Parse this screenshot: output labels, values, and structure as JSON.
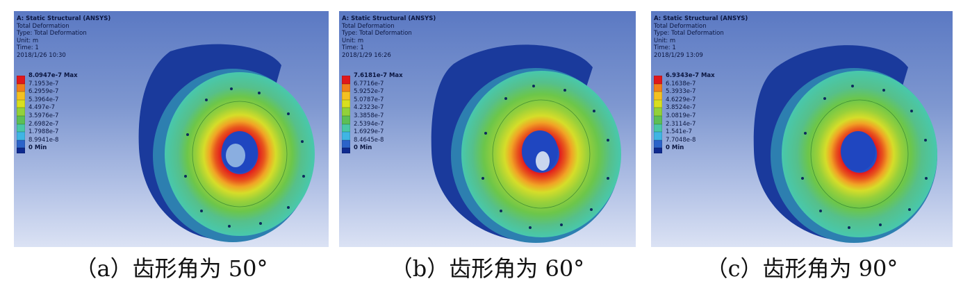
{
  "panels": [
    {
      "id": "a",
      "header": {
        "title": "A: Static Structural (ANSYS)",
        "result": "Total Deformation",
        "type": "Type: Total Deformation",
        "unit": "Unit: m",
        "time": "Time: 1",
        "date": "2018/1/26 10:30"
      },
      "legend": [
        "8.0947e-7 Max",
        "7.1953e-7",
        "6.2959e-7",
        "5.3964e-7",
        "4.497e-7",
        "3.5976e-7",
        "2.6982e-7",
        "1.7988e-7",
        "8.9941e-8",
        "0 Min"
      ],
      "caption": "（a）齿形角为 50°"
    },
    {
      "id": "b",
      "header": {
        "title": "A: Static Structural (ANSYS)",
        "result": "Total Deformation",
        "type": "Type: Total Deformation",
        "unit": "Unit: m",
        "time": "Time: 1",
        "date": "2018/1/29 16:26"
      },
      "legend": [
        "7.6181e-7 Max",
        "6.7716e-7",
        "5.9252e-7",
        "5.0787e-7",
        "4.2323e-7",
        "3.3858e-7",
        "2.5394e-7",
        "1.6929e-7",
        "8.4645e-8",
        "0 Min"
      ],
      "caption": "（b）齿形角为 60°"
    },
    {
      "id": "c",
      "header": {
        "title": "A: Static Structural (ANSYS)",
        "result": "Total Deformation",
        "type": "Type: Total Deformation",
        "unit": "Unit: m",
        "time": "Time: 1",
        "date": "2018/1/29 13:09"
      },
      "legend": [
        "6.9343e-7 Max",
        "6.1638e-7",
        "5.3933e-7",
        "4.6229e-7",
        "3.8524e-7",
        "3.0819e-7",
        "2.3114e-7",
        "1.541e-7",
        "7.7048e-8",
        "0 Min"
      ],
      "caption": "（c）齿形角为 90°"
    }
  ],
  "legend_colors": [
    "#e0181b",
    "#f07f1c",
    "#f4c022",
    "#d8df1f",
    "#92d13a",
    "#5cbf55",
    "#49c7a6",
    "#3fb5e4",
    "#2b63c9",
    "#0e2a8f"
  ]
}
